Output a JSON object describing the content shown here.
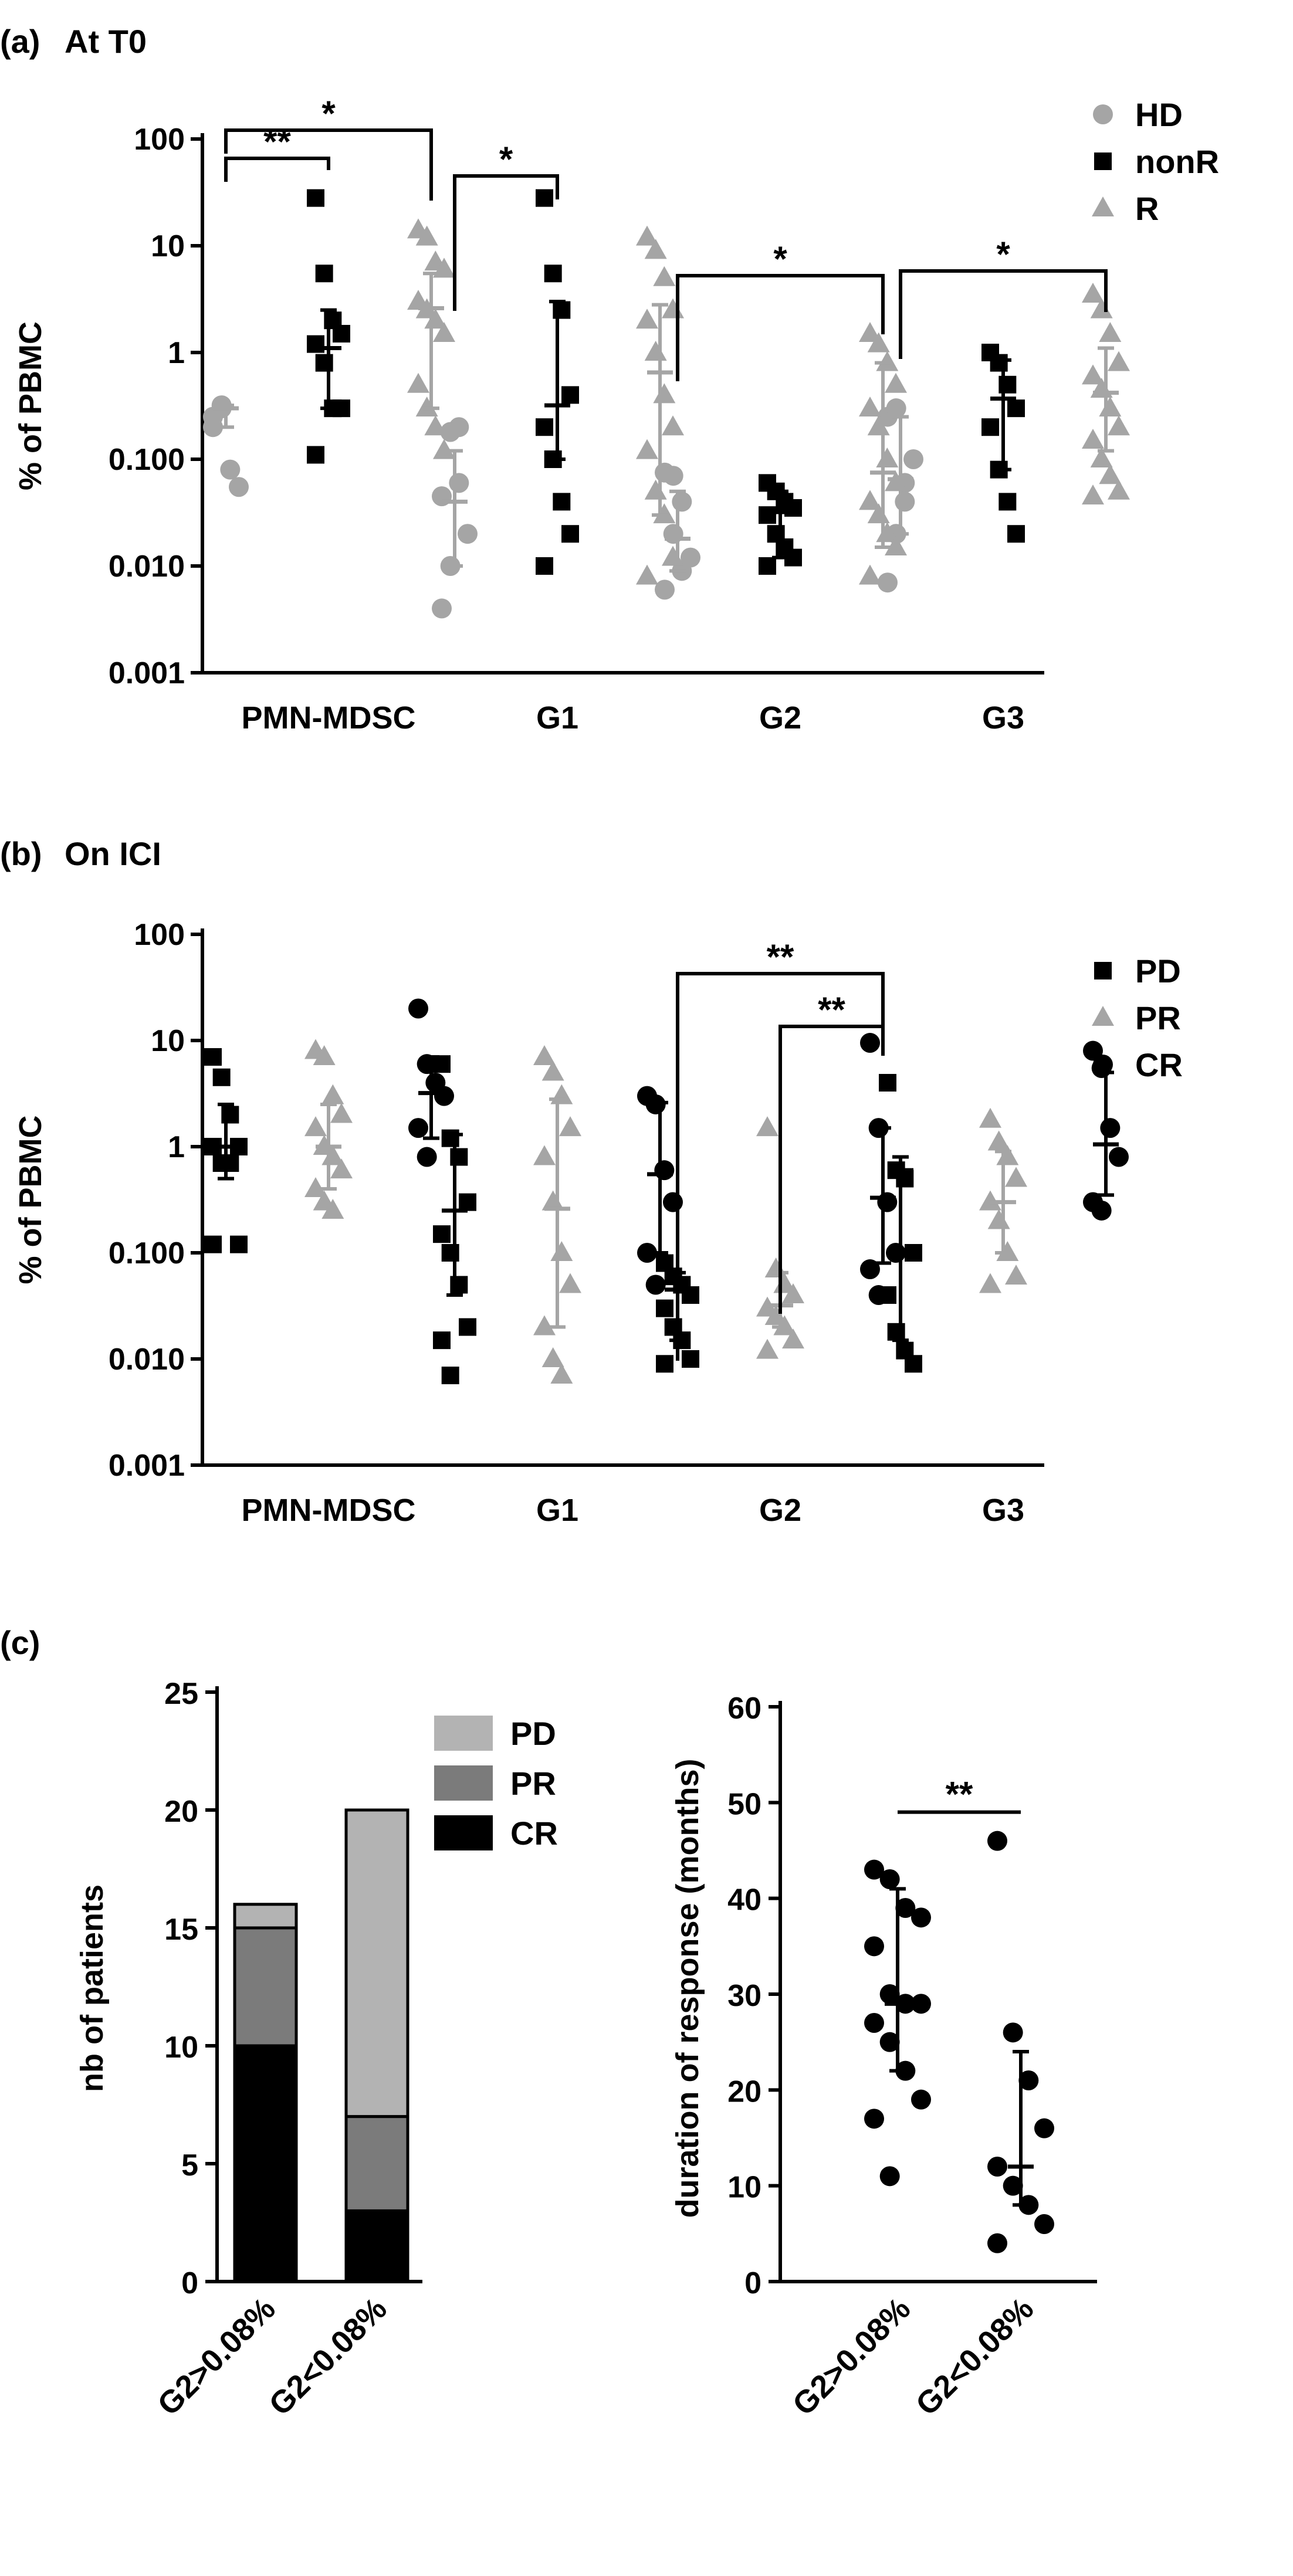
{
  "colors": {
    "black": "#000000",
    "gray": "#a5a5a5",
    "mid": "#7b7b7b",
    "light": "#b3b3b3"
  },
  "panel_a": {
    "label": "(a)",
    "title": "At T0"
  },
  "panel_b": {
    "label": "(b)",
    "title": "On ICI"
  },
  "panel_c": {
    "label": "(c)"
  },
  "chart_data": [
    {
      "id": "a",
      "type": "scatter",
      "title": "At T0",
      "ylabel": "% of PBMC",
      "yscale": "log",
      "ylim": [
        0.001,
        100
      ],
      "yticks": [
        "0.001",
        "0.010",
        "0.100",
        "1",
        "10",
        "100"
      ],
      "categories": [
        "PMN-MDSC",
        "G1",
        "G2",
        "G3"
      ],
      "series": [
        {
          "name": "HD",
          "marker": "circle",
          "color": "#a5a5a5",
          "points": [
            [
              0.2,
              0.3,
              0.08,
              0.055,
              0.25,
              0.32
            ],
            [
              0.045,
              0.18,
              0.2,
              0.02,
              0.004,
              0.01,
              0.06
            ],
            [
              0.075,
              0.07,
              0.04,
              0.012,
              0.006,
              0.02,
              0.009
            ],
            [
              0.25,
              0.3,
              0.06,
              0.1,
              0.007,
              0.02,
              0.04
            ]
          ],
          "median": [
            0.3,
            0.04,
            0.018,
            0.065
          ],
          "low": [
            0.2,
            0.01,
            0.009,
            0.02
          ],
          "high": [
            0.32,
            0.12,
            0.05,
            0.25
          ]
        },
        {
          "name": "nonR",
          "marker": "square",
          "color": "#000000",
          "points": [
            [
              28,
              5.5,
              2,
              1.5,
              1.2,
              0.8,
              0.3,
              0.3,
              0.11
            ],
            [
              28,
              5.5,
              2.5,
              0.4,
              0.2,
              0.1,
              0.04,
              0.02,
              0.01
            ],
            [
              0.06,
              0.05,
              0.04,
              0.035,
              0.03,
              0.02,
              0.015,
              0.012,
              0.01
            ],
            [
              1,
              0.8,
              0.5,
              0.3,
              0.2,
              0.08,
              0.04,
              0.02
            ]
          ],
          "median": [
            1.1,
            0.32,
            0.032,
            0.37
          ],
          "low": [
            0.3,
            0.1,
            0.012,
            0.08
          ],
          "high": [
            2.5,
            3,
            0.05,
            0.85
          ]
        },
        {
          "name": "R",
          "marker": "triangle",
          "color": "#a5a5a5",
          "points": [
            [
              14,
              12,
              7,
              6,
              3,
              2.5,
              2,
              1.5,
              0.5,
              0.3,
              0.2,
              0.12
            ],
            [
              12,
              9,
              5,
              2.5,
              2,
              1,
              0.4,
              0.2,
              0.12,
              0.05,
              0.03,
              0.012,
              0.008
            ],
            [
              1.5,
              1.2,
              0.8,
              0.5,
              0.3,
              0.2,
              0.1,
              0.06,
              0.04,
              0.03,
              0.02,
              0.015,
              0.008
            ],
            [
              3.5,
              2.5,
              1.5,
              0.8,
              0.6,
              0.45,
              0.3,
              0.2,
              0.15,
              0.1,
              0.07,
              0.05,
              0.045
            ]
          ],
          "median": [
            2.6,
            0.65,
            0.075,
            0.42
          ],
          "low": [
            0.3,
            0.03,
            0.015,
            0.12
          ],
          "high": [
            5.5,
            2.8,
            0.8,
            1.1
          ]
        }
      ],
      "significance": [
        {
          "from": "PMN-MDSC:HD",
          "to": "PMN-MDSC:nonR",
          "label": "**"
        },
        {
          "from": "PMN-MDSC:HD",
          "to": "PMN-MDSC:R",
          "label": "*"
        },
        {
          "from": "G1:HD",
          "to": "G1:nonR",
          "label": "*"
        },
        {
          "from": "G2:HD",
          "to": "G2:R",
          "label": "*"
        },
        {
          "from": "G3:HD",
          "to": "G3:R",
          "label": "*"
        }
      ]
    },
    {
      "id": "b",
      "type": "scatter",
      "title": "On ICI",
      "ylabel": "% of PBMC",
      "yscale": "log",
      "ylim": [
        0.001,
        100
      ],
      "yticks": [
        "0.001",
        "0.010",
        "0.100",
        "1",
        "10",
        "100"
      ],
      "categories": [
        "PMN-MDSC",
        "G1",
        "G2",
        "G3"
      ],
      "series": [
        {
          "name": "PD",
          "marker": "square",
          "color": "#000000",
          "points": [
            [
              7,
              4.5,
              2,
              1,
              1,
              0.7,
              0.7,
              0.12,
              0.12
            ],
            [
              6,
              1.2,
              0.8,
              0.3,
              0.15,
              0.1,
              0.05,
              0.02,
              0.015,
              0.007
            ],
            [
              0.08,
              0.06,
              0.05,
              0.04,
              0.03,
              0.02,
              0.015,
              0.01,
              0.009
            ],
            [
              4,
              0.6,
              0.5,
              0.1,
              0.04,
              0.018,
              0.012,
              0.009
            ]
          ],
          "median": [
            1,
            0.25,
            0.045,
            0.6
          ],
          "low": [
            0.5,
            0.04,
            0.015,
            0.015
          ],
          "high": [
            2.5,
            1.3,
            0.065,
            0.8
          ]
        },
        {
          "name": "PR",
          "marker": "triangle",
          "color": "#a5a5a5",
          "points": [
            [
              8,
              7,
              3,
              2,
              1.5,
              1,
              0.8,
              0.6,
              0.4,
              0.3,
              0.25
            ],
            [
              7,
              5,
              3,
              1.5,
              0.8,
              0.3,
              0.1,
              0.05,
              0.02,
              0.01,
              0.007
            ],
            [
              1.5,
              0.07,
              0.05,
              0.04,
              0.03,
              0.025,
              0.02,
              0.015,
              0.012
            ],
            [
              1.8,
              1.1,
              0.8,
              0.5,
              0.3,
              0.2,
              0.1,
              0.06,
              0.05
            ]
          ],
          "median": [
            1,
            0.26,
            0.032,
            0.3
          ],
          "low": [
            0.4,
            0.02,
            0.02,
            0.1
          ],
          "high": [
            2.5,
            2.8,
            0.065,
            0.9
          ]
        },
        {
          "name": "CR",
          "marker": "circle",
          "color": "#000000",
          "points": [
            [
              20,
              6,
              4,
              3,
              1.5,
              0.8
            ],
            [
              3,
              2.5,
              0.6,
              0.3,
              0.1,
              0.05
            ],
            [
              9.5,
              1.5,
              0.3,
              0.1,
              0.07,
              0.04
            ],
            [
              8,
              5.5,
              1.5,
              0.8,
              0.3,
              0.25
            ]
          ],
          "median": [
            3.2,
            0.55,
            0.33,
            1.05
          ],
          "low": [
            1.2,
            0.1,
            0.08,
            0.35
          ],
          "high": [
            7,
            2.6,
            1.5,
            5
          ]
        }
      ],
      "significance": [
        {
          "from": "G2:PD",
          "to": "G2:CR",
          "label": "**"
        },
        {
          "from": "G2:PR",
          "to": "G2:CR",
          "label": "**"
        }
      ]
    },
    {
      "id": "c-left",
      "type": "bar",
      "stacked": true,
      "ylabel": "nb of patients",
      "ylim": [
        0,
        25
      ],
      "yticks": [
        "0",
        "5",
        "10",
        "15",
        "20",
        "25"
      ],
      "categories": [
        "G2>0.08%",
        "G2<0.08%"
      ],
      "series": [
        {
          "name": "CR",
          "color": "#000000",
          "values": [
            10,
            3
          ]
        },
        {
          "name": "PR",
          "color": "#7b7b7b",
          "values": [
            5,
            4
          ]
        },
        {
          "name": "PD",
          "color": "#b3b3b3",
          "values": [
            1,
            13
          ]
        }
      ],
      "legend_order": [
        "PD",
        "PR",
        "CR"
      ]
    },
    {
      "id": "c-right",
      "type": "scatter",
      "ylabel": "duration of response (months)",
      "ylim": [
        0,
        60
      ],
      "yticks": [
        "0",
        "10",
        "20",
        "30",
        "40",
        "50",
        "60"
      ],
      "categories": [
        "G2>0.08%",
        "G2<0.08%"
      ],
      "series": [
        {
          "name": "duration",
          "marker": "circle",
          "color": "#000000",
          "points": [
            [
              43,
              42,
              39,
              38,
              35,
              30,
              29,
              29,
              27,
              25,
              22,
              19,
              17,
              11
            ],
            [
              46,
              26,
              21,
              16,
              12,
              10,
              8,
              6,
              4
            ]
          ],
          "median": [
            29,
            12
          ],
          "low": [
            22,
            8
          ],
          "high": [
            41,
            24
          ]
        }
      ],
      "significance": [
        {
          "from": "G2>0.08%",
          "to": "G2<0.08%",
          "label": "**"
        }
      ]
    }
  ]
}
